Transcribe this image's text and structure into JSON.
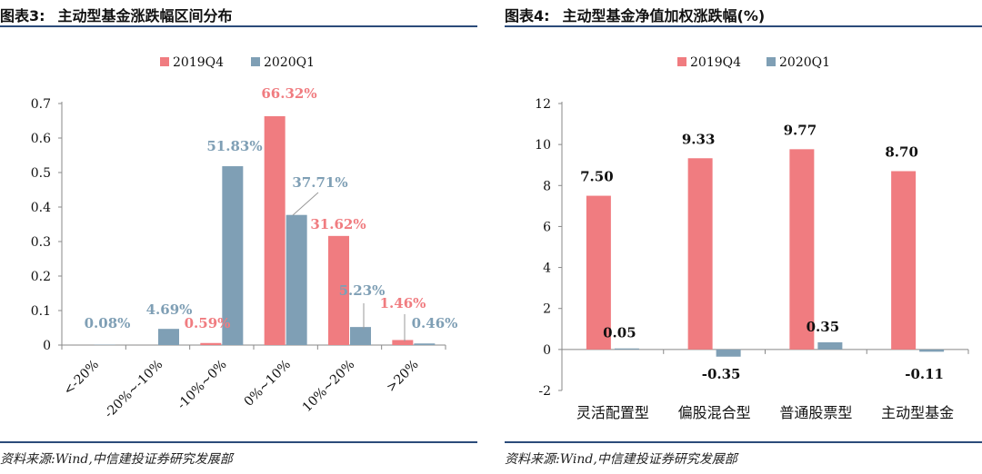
{
  "colors": {
    "s1": "#f07c80",
    "s2": "#7f9fb5",
    "rule": "#2b4b7a"
  },
  "left": {
    "caption_label": "图表3:",
    "caption_title": "主动型基金涨跌幅区间分布",
    "source": "资料来源:Wind,中信建投证券研究发展部"
  },
  "right": {
    "caption_label": "图表4:",
    "caption_title": "主动型基金净值加权涨跌幅(%)",
    "source": "资料来源:Wind,中信建投证券研究发展部"
  },
  "chart_data": [
    {
      "type": "bar",
      "title": "主动型基金涨跌幅区间分布",
      "categories": [
        "<-20%",
        "-20%~-10%",
        "-10%~0%",
        "0%~10%",
        "10%~20%",
        ">20%"
      ],
      "series": [
        {
          "name": "2019Q4",
          "values": [
            0.0,
            0.0,
            0.0059,
            0.6632,
            0.3162,
            0.0146
          ],
          "labels": [
            "",
            "",
            "0.59%",
            "66.32%",
            "31.62%",
            "1.46%"
          ]
        },
        {
          "name": "2020Q1",
          "values": [
            0.0008,
            0.0469,
            0.5183,
            0.3771,
            0.0523,
            0.0046
          ],
          "labels": [
            "0.08%",
            "4.69%",
            "51.83%",
            "37.71%",
            "5.23%",
            "0.46%"
          ]
        }
      ],
      "ylim": [
        0,
        0.7
      ],
      "yticks": [
        "0",
        "0.1",
        "0.2",
        "0.3",
        "0.4",
        "0.5",
        "0.6",
        "0.7"
      ],
      "legend_position": "top-center"
    },
    {
      "type": "bar",
      "title": "主动型基金净值加权涨跌幅(%)",
      "categories": [
        "灵活配置型",
        "偏股混合型",
        "普通股票型",
        "主动型基金"
      ],
      "series": [
        {
          "name": "2019Q4",
          "values": [
            7.5,
            9.33,
            9.77,
            8.7
          ],
          "labels": [
            "7.50",
            "9.33",
            "9.77",
            "8.70"
          ]
        },
        {
          "name": "2020Q1",
          "values": [
            0.05,
            -0.35,
            0.35,
            -0.11
          ],
          "labels": [
            "0.05",
            "-0.35",
            "0.35",
            "-0.11"
          ]
        }
      ],
      "ylim": [
        -2,
        12
      ],
      "yticks": [
        "-2",
        "0",
        "2",
        "4",
        "6",
        "8",
        "10",
        "12"
      ],
      "legend_position": "top-center"
    }
  ]
}
